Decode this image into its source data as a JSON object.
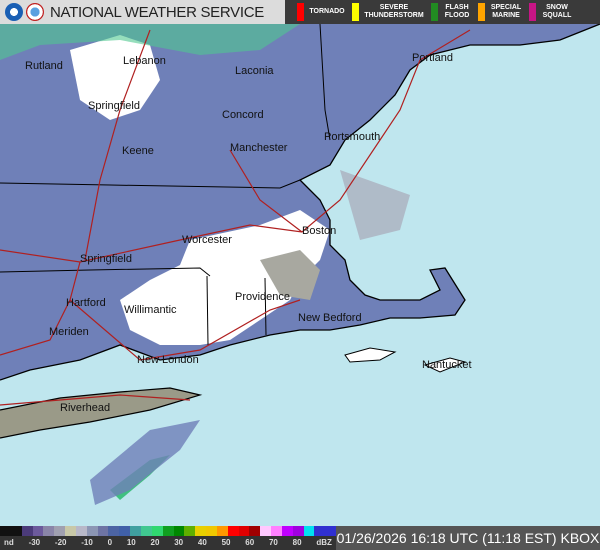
{
  "header": {
    "title": "NATIONAL WEATHER SERVICE",
    "logos": [
      "noaa-logo",
      "nws-logo"
    ]
  },
  "warnings": [
    {
      "label": "TORNADO",
      "color": "#ff0000"
    },
    {
      "label": "SEVERE THUNDERSTORM",
      "color": "#ffff00"
    },
    {
      "label": "FLASH FLOOD",
      "color": "#228b22"
    },
    {
      "label": "SPECIAL MARINE",
      "color": "#ffa500"
    },
    {
      "label": "SNOW SQUALL",
      "color": "#c71585"
    }
  ],
  "cities": [
    {
      "name": "Rutland"
    },
    {
      "name": "Lebanon"
    },
    {
      "name": "Laconia"
    },
    {
      "name": "Springfield"
    },
    {
      "name": "Concord"
    },
    {
      "name": "Portland"
    },
    {
      "name": "Portsmouth"
    },
    {
      "name": "Keene"
    },
    {
      "name": "Manchester"
    },
    {
      "name": "Worcester"
    },
    {
      "name": "Boston"
    },
    {
      "name": "Springfield"
    },
    {
      "name": "Hartford"
    },
    {
      "name": "Providence"
    },
    {
      "name": "Willimantic"
    },
    {
      "name": "New Bedford"
    },
    {
      "name": "Meriden"
    },
    {
      "name": "New London"
    },
    {
      "name": "Nantucket"
    },
    {
      "name": "Riverhead"
    }
  ],
  "legend": {
    "ticks": [
      "nd",
      "-30",
      "-20",
      "-10",
      "0",
      "10",
      "20",
      "30",
      "40",
      "50",
      "60",
      "70",
      "80",
      "dBZ"
    ],
    "colors": [
      "#111",
      "#111",
      "#4b3b7a",
      "#6c5a9c",
      "#8a85a8",
      "#a0a0b0",
      "#c8c8a8",
      "#b8b8c8",
      "#8c96b4",
      "#6e74a4",
      "#4c64a4",
      "#4060a8",
      "#40a0a0",
      "#40c890",
      "#30d870",
      "#10a020",
      "#008800",
      "#60b000",
      "#e8d000",
      "#f0c800",
      "#ff9800",
      "#ff0000",
      "#e00000",
      "#a00000",
      "#ffc8ff",
      "#ff80ff",
      "#c000ff",
      "#a000e0",
      "#00e0f0",
      "#3030d0",
      "#3030d0"
    ],
    "unit": "dBZ"
  },
  "timestamp": "01/26/2026 16:18 UTC (11:18 EST) KBOX"
}
